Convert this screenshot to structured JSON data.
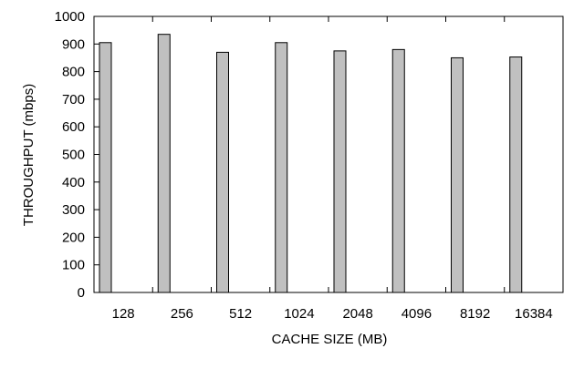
{
  "chart_data": {
    "type": "bar",
    "title": "",
    "xlabel": "CACHE SIZE (MB)",
    "ylabel": "THROUGHPUT (mbps)",
    "categories": [
      "128",
      "256",
      "512",
      "1024",
      "2048",
      "4096",
      "8192",
      "16384"
    ],
    "values": [
      905,
      935,
      870,
      905,
      875,
      880,
      850,
      853
    ],
    "ylim": [
      0,
      1000
    ],
    "yticks": [
      0,
      100,
      200,
      300,
      400,
      500,
      600,
      700,
      800,
      900,
      1000
    ],
    "grid": false,
    "legend": "none",
    "colors": {
      "bar_fill": "#c0c0c0",
      "bar_stroke": "#000000",
      "axis": "#000000"
    }
  }
}
